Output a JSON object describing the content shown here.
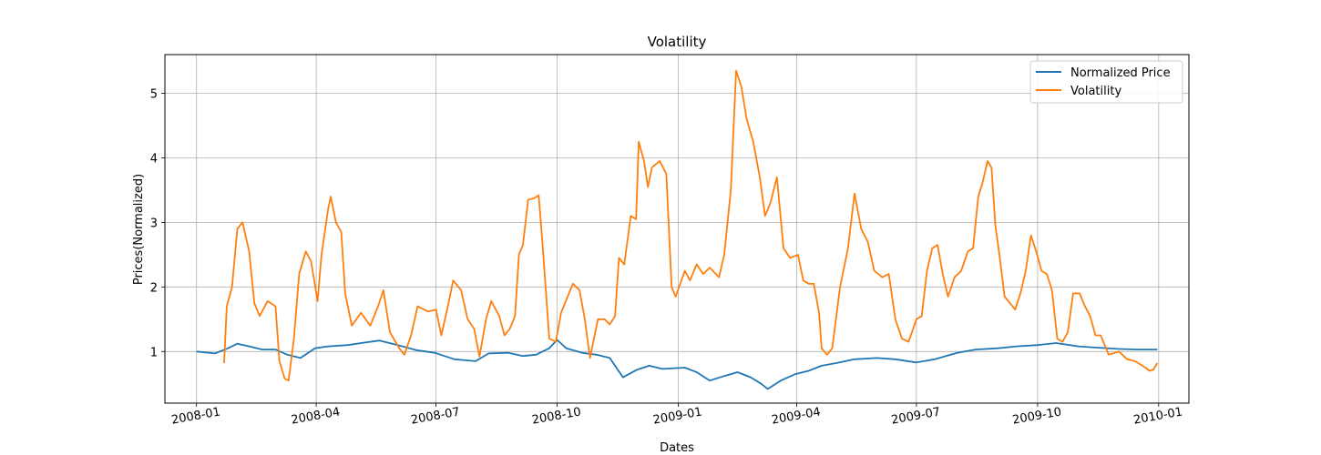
{
  "chart_data": {
    "type": "line",
    "title": "Volatility",
    "xlabel": "Dates",
    "ylabel": "Prices(Normalized)",
    "x_ticks": [
      "2008-01",
      "2008-04",
      "2008-07",
      "2008-10",
      "2009-01",
      "2009-04",
      "2009-07",
      "2009-10",
      "2010-01"
    ],
    "y_ticks": [
      1,
      2,
      3,
      4,
      5
    ],
    "xlim": [
      "2007-12-08",
      "2010-01-24"
    ],
    "ylim": [
      0.2,
      5.6
    ],
    "grid": true,
    "legend_position": "top-right",
    "series": [
      {
        "name": "Normalized Price",
        "color": "#1f77b4",
        "points": [
          [
            "2008-01-01",
            1.0
          ],
          [
            "2008-01-15",
            0.97
          ],
          [
            "2008-01-25",
            1.05
          ],
          [
            "2008-02-01",
            1.12
          ],
          [
            "2008-02-10",
            1.08
          ],
          [
            "2008-02-20",
            1.03
          ],
          [
            "2008-03-01",
            1.03
          ],
          [
            "2008-03-10",
            0.95
          ],
          [
            "2008-03-20",
            0.9
          ],
          [
            "2008-03-31",
            1.05
          ],
          [
            "2008-04-10",
            1.08
          ],
          [
            "2008-04-25",
            1.1
          ],
          [
            "2008-05-05",
            1.13
          ],
          [
            "2008-05-19",
            1.17
          ],
          [
            "2008-06-02",
            1.1
          ],
          [
            "2008-06-16",
            1.02
          ],
          [
            "2008-06-30",
            0.98
          ],
          [
            "2008-07-15",
            0.88
          ],
          [
            "2008-07-31",
            0.85
          ],
          [
            "2008-08-10",
            0.97
          ],
          [
            "2008-08-25",
            0.98
          ],
          [
            "2008-09-05",
            0.93
          ],
          [
            "2008-09-15",
            0.95
          ],
          [
            "2008-09-25",
            1.05
          ],
          [
            "2008-10-01",
            1.18
          ],
          [
            "2008-10-08",
            1.05
          ],
          [
            "2008-10-20",
            0.98
          ],
          [
            "2008-10-31",
            0.95
          ],
          [
            "2008-11-10",
            0.9
          ],
          [
            "2008-11-20",
            0.6
          ],
          [
            "2008-12-01",
            0.72
          ],
          [
            "2008-12-10",
            0.78
          ],
          [
            "2008-12-20",
            0.73
          ],
          [
            "2009-01-06",
            0.75
          ],
          [
            "2009-01-15",
            0.68
          ],
          [
            "2009-01-25",
            0.55
          ],
          [
            "2009-02-05",
            0.62
          ],
          [
            "2009-02-15",
            0.68
          ],
          [
            "2009-02-25",
            0.6
          ],
          [
            "2009-03-05",
            0.5
          ],
          [
            "2009-03-10",
            0.42
          ],
          [
            "2009-03-20",
            0.55
          ],
          [
            "2009-03-31",
            0.65
          ],
          [
            "2009-04-10",
            0.7
          ],
          [
            "2009-04-20",
            0.78
          ],
          [
            "2009-05-01",
            0.82
          ],
          [
            "2009-05-15",
            0.88
          ],
          [
            "2009-06-01",
            0.9
          ],
          [
            "2009-06-15",
            0.88
          ],
          [
            "2009-07-01",
            0.83
          ],
          [
            "2009-07-15",
            0.88
          ],
          [
            "2009-08-01",
            0.98
          ],
          [
            "2009-08-15",
            1.03
          ],
          [
            "2009-09-01",
            1.05
          ],
          [
            "2009-09-15",
            1.08
          ],
          [
            "2009-10-01",
            1.1
          ],
          [
            "2009-10-15",
            1.13
          ],
          [
            "2009-11-01",
            1.08
          ],
          [
            "2009-11-15",
            1.06
          ],
          [
            "2009-12-01",
            1.04
          ],
          [
            "2009-12-15",
            1.03
          ],
          [
            "2009-12-31",
            1.03
          ]
        ]
      },
      {
        "name": "Volatility",
        "color": "#ff7f0e",
        "points": [
          [
            "2008-01-22",
            0.82
          ],
          [
            "2008-01-24",
            1.7
          ],
          [
            "2008-01-28",
            2.0
          ],
          [
            "2008-02-01",
            2.9
          ],
          [
            "2008-02-05",
            3.0
          ],
          [
            "2008-02-10",
            2.55
          ],
          [
            "2008-02-14",
            1.75
          ],
          [
            "2008-02-18",
            1.55
          ],
          [
            "2008-02-24",
            1.78
          ],
          [
            "2008-03-01",
            1.7
          ],
          [
            "2008-03-04",
            0.85
          ],
          [
            "2008-03-08",
            0.58
          ],
          [
            "2008-03-11",
            0.55
          ],
          [
            "2008-03-15",
            1.2
          ],
          [
            "2008-03-19",
            2.2
          ],
          [
            "2008-03-24",
            2.55
          ],
          [
            "2008-03-28",
            2.4
          ],
          [
            "2008-04-02",
            1.78
          ],
          [
            "2008-04-05",
            2.5
          ],
          [
            "2008-04-10",
            3.2
          ],
          [
            "2008-04-12",
            3.4
          ],
          [
            "2008-04-16",
            3.0
          ],
          [
            "2008-04-20",
            2.85
          ],
          [
            "2008-04-23",
            1.9
          ],
          [
            "2008-04-28",
            1.4
          ],
          [
            "2008-05-05",
            1.6
          ],
          [
            "2008-05-12",
            1.4
          ],
          [
            "2008-05-18",
            1.7
          ],
          [
            "2008-05-22",
            1.95
          ],
          [
            "2008-05-27",
            1.3
          ],
          [
            "2008-06-03",
            1.05
          ],
          [
            "2008-06-07",
            0.95
          ],
          [
            "2008-06-12",
            1.25
          ],
          [
            "2008-06-17",
            1.7
          ],
          [
            "2008-06-25",
            1.62
          ],
          [
            "2008-07-01",
            1.65
          ],
          [
            "2008-07-05",
            1.25
          ],
          [
            "2008-07-10",
            1.7
          ],
          [
            "2008-07-14",
            2.1
          ],
          [
            "2008-07-20",
            1.95
          ],
          [
            "2008-07-25",
            1.5
          ],
          [
            "2008-07-30",
            1.35
          ],
          [
            "2008-08-03",
            0.92
          ],
          [
            "2008-08-08",
            1.5
          ],
          [
            "2008-08-12",
            1.78
          ],
          [
            "2008-08-18",
            1.55
          ],
          [
            "2008-08-22",
            1.25
          ],
          [
            "2008-08-26",
            1.35
          ],
          [
            "2008-08-30",
            1.55
          ],
          [
            "2008-09-02",
            2.5
          ],
          [
            "2008-09-05",
            2.65
          ],
          [
            "2008-09-09",
            3.35
          ],
          [
            "2008-09-14",
            3.38
          ],
          [
            "2008-09-17",
            3.42
          ],
          [
            "2008-09-20",
            2.65
          ],
          [
            "2008-09-25",
            1.2
          ],
          [
            "2008-09-30",
            1.15
          ],
          [
            "2008-10-04",
            1.6
          ],
          [
            "2008-10-08",
            1.8
          ],
          [
            "2008-10-13",
            2.05
          ],
          [
            "2008-10-18",
            1.95
          ],
          [
            "2008-10-22",
            1.5
          ],
          [
            "2008-10-26",
            0.9
          ],
          [
            "2008-11-01",
            1.5
          ],
          [
            "2008-11-06",
            1.5
          ],
          [
            "2008-11-10",
            1.42
          ],
          [
            "2008-11-14",
            1.55
          ],
          [
            "2008-11-17",
            2.45
          ],
          [
            "2008-11-21",
            2.35
          ],
          [
            "2008-11-26",
            3.1
          ],
          [
            "2008-11-30",
            3.05
          ],
          [
            "2008-12-02",
            4.25
          ],
          [
            "2008-12-06",
            3.95
          ],
          [
            "2008-12-09",
            3.55
          ],
          [
            "2008-12-12",
            3.85
          ],
          [
            "2008-12-18",
            3.95
          ],
          [
            "2008-12-23",
            3.75
          ],
          [
            "2008-12-27",
            2.0
          ],
          [
            "2008-12-30",
            1.85
          ],
          [
            "2009-01-06",
            2.25
          ],
          [
            "2009-01-10",
            2.1
          ],
          [
            "2009-01-15",
            2.35
          ],
          [
            "2009-01-20",
            2.2
          ],
          [
            "2009-01-25",
            2.3
          ],
          [
            "2009-02-01",
            2.15
          ],
          [
            "2009-02-05",
            2.5
          ],
          [
            "2009-02-10",
            3.5
          ],
          [
            "2009-02-14",
            5.35
          ],
          [
            "2009-02-18",
            5.1
          ],
          [
            "2009-02-22",
            4.6
          ],
          [
            "2009-02-27",
            4.25
          ],
          [
            "2009-03-04",
            3.7
          ],
          [
            "2009-03-08",
            3.1
          ],
          [
            "2009-03-12",
            3.3
          ],
          [
            "2009-03-17",
            3.7
          ],
          [
            "2009-03-22",
            2.6
          ],
          [
            "2009-03-27",
            2.45
          ],
          [
            "2009-04-02",
            2.5
          ],
          [
            "2009-04-06",
            2.1
          ],
          [
            "2009-04-10",
            2.05
          ],
          [
            "2009-04-14",
            2.05
          ],
          [
            "2009-04-18",
            1.6
          ],
          [
            "2009-04-20",
            1.05
          ],
          [
            "2009-04-24",
            0.95
          ],
          [
            "2009-04-28",
            1.05
          ],
          [
            "2009-05-04",
            2.0
          ],
          [
            "2009-05-10",
            2.6
          ],
          [
            "2009-05-15",
            3.45
          ],
          [
            "2009-05-20",
            2.9
          ],
          [
            "2009-05-25",
            2.7
          ],
          [
            "2009-05-30",
            2.25
          ],
          [
            "2009-06-05",
            2.15
          ],
          [
            "2009-06-10",
            2.2
          ],
          [
            "2009-06-15",
            1.5
          ],
          [
            "2009-06-20",
            1.2
          ],
          [
            "2009-06-25",
            1.15
          ],
          [
            "2009-07-01",
            1.5
          ],
          [
            "2009-07-05",
            1.55
          ],
          [
            "2009-07-09",
            2.25
          ],
          [
            "2009-07-13",
            2.6
          ],
          [
            "2009-07-17",
            2.65
          ],
          [
            "2009-07-21",
            2.2
          ],
          [
            "2009-07-25",
            1.85
          ],
          [
            "2009-07-30",
            2.15
          ],
          [
            "2009-08-04",
            2.25
          ],
          [
            "2009-08-09",
            2.55
          ],
          [
            "2009-08-13",
            2.6
          ],
          [
            "2009-08-17",
            3.4
          ],
          [
            "2009-08-20",
            3.6
          ],
          [
            "2009-08-24",
            3.95
          ],
          [
            "2009-08-27",
            3.85
          ],
          [
            "2009-08-30",
            2.95
          ],
          [
            "2009-09-02",
            2.5
          ],
          [
            "2009-09-06",
            1.85
          ],
          [
            "2009-09-10",
            1.75
          ],
          [
            "2009-09-14",
            1.65
          ],
          [
            "2009-09-18",
            1.9
          ],
          [
            "2009-09-22",
            2.25
          ],
          [
            "2009-09-26",
            2.8
          ],
          [
            "2009-09-30",
            2.55
          ],
          [
            "2009-10-04",
            2.25
          ],
          [
            "2009-10-08",
            2.2
          ],
          [
            "2009-10-12",
            1.95
          ],
          [
            "2009-10-16",
            1.2
          ],
          [
            "2009-10-20",
            1.15
          ],
          [
            "2009-10-24",
            1.3
          ],
          [
            "2009-10-28",
            1.9
          ],
          [
            "2009-11-02",
            1.9
          ],
          [
            "2009-11-06",
            1.7
          ],
          [
            "2009-11-10",
            1.55
          ],
          [
            "2009-11-14",
            1.25
          ],
          [
            "2009-11-18",
            1.25
          ],
          [
            "2009-11-24",
            0.95
          ],
          [
            "2009-12-02",
            1.0
          ],
          [
            "2009-12-08",
            0.88
          ],
          [
            "2009-12-14",
            0.85
          ],
          [
            "2009-12-18",
            0.8
          ],
          [
            "2009-12-22",
            0.75
          ],
          [
            "2009-12-25",
            0.7
          ],
          [
            "2009-12-28",
            0.72
          ],
          [
            "2009-12-31",
            0.82
          ]
        ]
      }
    ]
  }
}
